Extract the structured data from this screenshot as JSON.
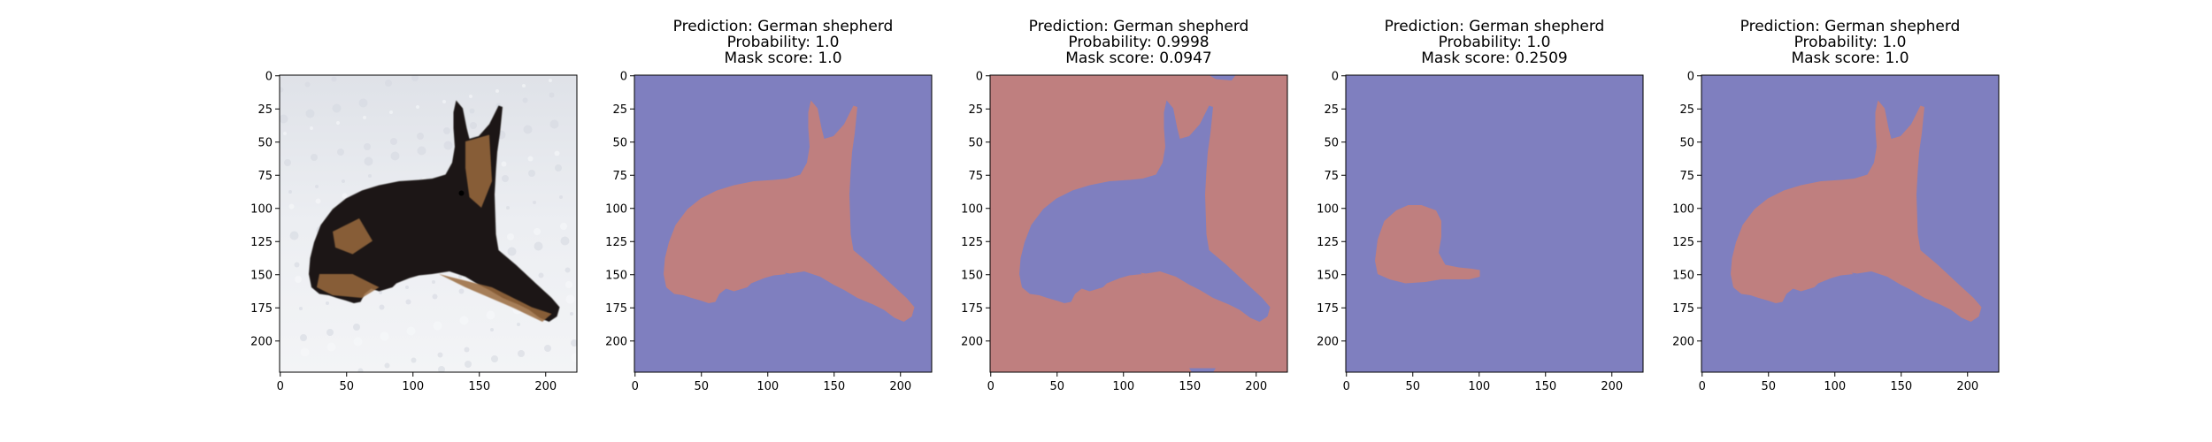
{
  "panels": [
    {
      "kind": "photo",
      "title_lines": [],
      "x_ticks": [
        "0",
        "50",
        "100",
        "150",
        "200"
      ],
      "y_ticks": [
        "0",
        "25",
        "50",
        "75",
        "100",
        "125",
        "150",
        "175",
        "200"
      ]
    },
    {
      "kind": "mask",
      "variant": "dog",
      "title_lines": [
        "Prediction: German shepherd",
        "Probability: 1.0",
        "Mask score: 1.0"
      ],
      "x_ticks": [
        "0",
        "50",
        "100",
        "150",
        "200"
      ],
      "y_ticks": [
        "0",
        "25",
        "50",
        "75",
        "100",
        "125",
        "150",
        "175",
        "200"
      ]
    },
    {
      "kind": "mask",
      "variant": "inverted",
      "title_lines": [
        "Prediction: German shepherd",
        "Probability: 0.9998",
        "Mask score: 0.0947"
      ],
      "x_ticks": [
        "0",
        "50",
        "100",
        "150",
        "200"
      ],
      "y_ticks": [
        "0",
        "25",
        "50",
        "75",
        "100",
        "125",
        "150",
        "175",
        "200"
      ]
    },
    {
      "kind": "mask",
      "variant": "blob",
      "title_lines": [
        "Prediction: German shepherd",
        "Probability: 1.0",
        "Mask score: 0.2509"
      ],
      "x_ticks": [
        "0",
        "50",
        "100",
        "150",
        "200"
      ],
      "y_ticks": [
        "0",
        "25",
        "50",
        "75",
        "100",
        "125",
        "150",
        "175",
        "200"
      ]
    },
    {
      "kind": "mask",
      "variant": "dog",
      "title_lines": [
        "Prediction: German shepherd",
        "Probability: 1.0",
        "Mask score: 1.0"
      ],
      "x_ticks": [
        "0",
        "50",
        "100",
        "150",
        "200"
      ],
      "y_ticks": [
        "0",
        "25",
        "50",
        "75",
        "100",
        "125",
        "150",
        "175",
        "200"
      ]
    }
  ],
  "colors": {
    "background_mask": "#7f7fbf",
    "object_mask": "#bf7f7f",
    "snow": "#e9ebef",
    "dog_dark": "#1c1712",
    "dog_tan": "#9a6a3e"
  }
}
